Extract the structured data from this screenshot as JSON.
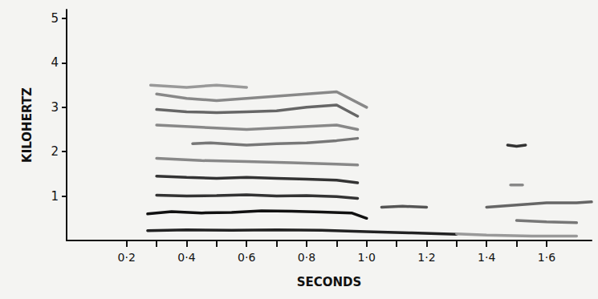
{
  "chart_data": {
    "type": "line",
    "x_label": "SECONDS",
    "y_label": "KILOHERTZ",
    "xlim": [
      0,
      1.75
    ],
    "ylim": [
      0,
      5.2
    ],
    "xticks": [
      {
        "value": 0.2,
        "label": "0·2"
      },
      {
        "value": 0.4,
        "label": "0·4"
      },
      {
        "value": 0.6,
        "label": "0·6"
      },
      {
        "value": 0.8,
        "label": "0·8"
      },
      {
        "value": 1.0,
        "label": "1·0"
      },
      {
        "value": 1.2,
        "label": "1·2"
      },
      {
        "value": 1.4,
        "label": "1·4"
      },
      {
        "value": 1.6,
        "label": "1·6"
      }
    ],
    "yticks": [
      1,
      2,
      3,
      4,
      5
    ],
    "grid": false,
    "series": [
      {
        "color": "#222222",
        "x": [
          0.27,
          0.4,
          0.55,
          0.7,
          0.85,
          1.0,
          1.15,
          1.3
        ],
        "values": [
          0.22,
          0.24,
          0.23,
          0.24,
          0.23,
          0.2,
          0.17,
          0.14
        ]
      },
      {
        "color": "#111111",
        "x": [
          0.27,
          0.35,
          0.45,
          0.55,
          0.65,
          0.75,
          0.85,
          0.95,
          1.0
        ],
        "values": [
          0.6,
          0.65,
          0.62,
          0.63,
          0.67,
          0.66,
          0.64,
          0.62,
          0.5
        ]
      },
      {
        "color": "#333333",
        "x": [
          0.3,
          0.4,
          0.5,
          0.6,
          0.7,
          0.8,
          0.9,
          0.97
        ],
        "values": [
          1.02,
          1.0,
          1.01,
          1.03,
          1.0,
          1.01,
          0.99,
          0.95
        ]
      },
      {
        "color": "#333333",
        "x": [
          0.3,
          0.4,
          0.5,
          0.6,
          0.7,
          0.8,
          0.9,
          0.97
        ],
        "values": [
          1.45,
          1.42,
          1.4,
          1.42,
          1.4,
          1.38,
          1.36,
          1.3
        ]
      },
      {
        "color": "#888888",
        "x": [
          0.3,
          0.45,
          0.6,
          0.75,
          0.9,
          0.97
        ],
        "values": [
          1.85,
          1.8,
          1.78,
          1.75,
          1.72,
          1.7
        ]
      },
      {
        "color": "#777777",
        "x": [
          0.42,
          0.48,
          0.6,
          0.7,
          0.8,
          0.9,
          0.97
        ],
        "values": [
          2.18,
          2.2,
          2.15,
          2.18,
          2.2,
          2.25,
          2.3
        ]
      },
      {
        "color": "#888888",
        "x": [
          0.3,
          0.45,
          0.6,
          0.75,
          0.9,
          0.97
        ],
        "values": [
          2.6,
          2.55,
          2.5,
          2.55,
          2.6,
          2.5
        ]
      },
      {
        "color": "#666666",
        "x": [
          0.3,
          0.4,
          0.5,
          0.6,
          0.7,
          0.8,
          0.9,
          0.97
        ],
        "values": [
          2.95,
          2.9,
          2.88,
          2.9,
          2.92,
          3.0,
          3.05,
          2.8
        ]
      },
      {
        "color": "#888888",
        "x": [
          0.3,
          0.4,
          0.5,
          0.6,
          0.7,
          0.8,
          0.9,
          1.0
        ],
        "values": [
          3.3,
          3.2,
          3.15,
          3.2,
          3.25,
          3.3,
          3.35,
          3.0
        ]
      },
      {
        "color": "#999999",
        "x": [
          0.28,
          0.4,
          0.5,
          0.6
        ],
        "values": [
          3.5,
          3.45,
          3.5,
          3.45
        ]
      },
      {
        "color": "#555555",
        "x": [
          1.05,
          1.12,
          1.2
        ],
        "values": [
          0.75,
          0.77,
          0.75
        ]
      },
      {
        "color": "#666666",
        "x": [
          1.4,
          1.5,
          1.6,
          1.7,
          1.75
        ],
        "values": [
          0.75,
          0.8,
          0.85,
          0.85,
          0.87
        ]
      },
      {
        "color": "#777777",
        "x": [
          1.5,
          1.6,
          1.7
        ],
        "values": [
          0.45,
          0.42,
          0.4
        ]
      },
      {
        "color": "#333333",
        "x": [
          1.47,
          1.5,
          1.53
        ],
        "values": [
          2.15,
          2.12,
          2.15
        ]
      },
      {
        "color": "#888888",
        "x": [
          1.48,
          1.52
        ],
        "values": [
          1.25,
          1.25
        ]
      },
      {
        "color": "#999999",
        "x": [
          1.3,
          1.4,
          1.55,
          1.7
        ],
        "values": [
          0.15,
          0.12,
          0.1,
          0.1
        ]
      }
    ]
  }
}
